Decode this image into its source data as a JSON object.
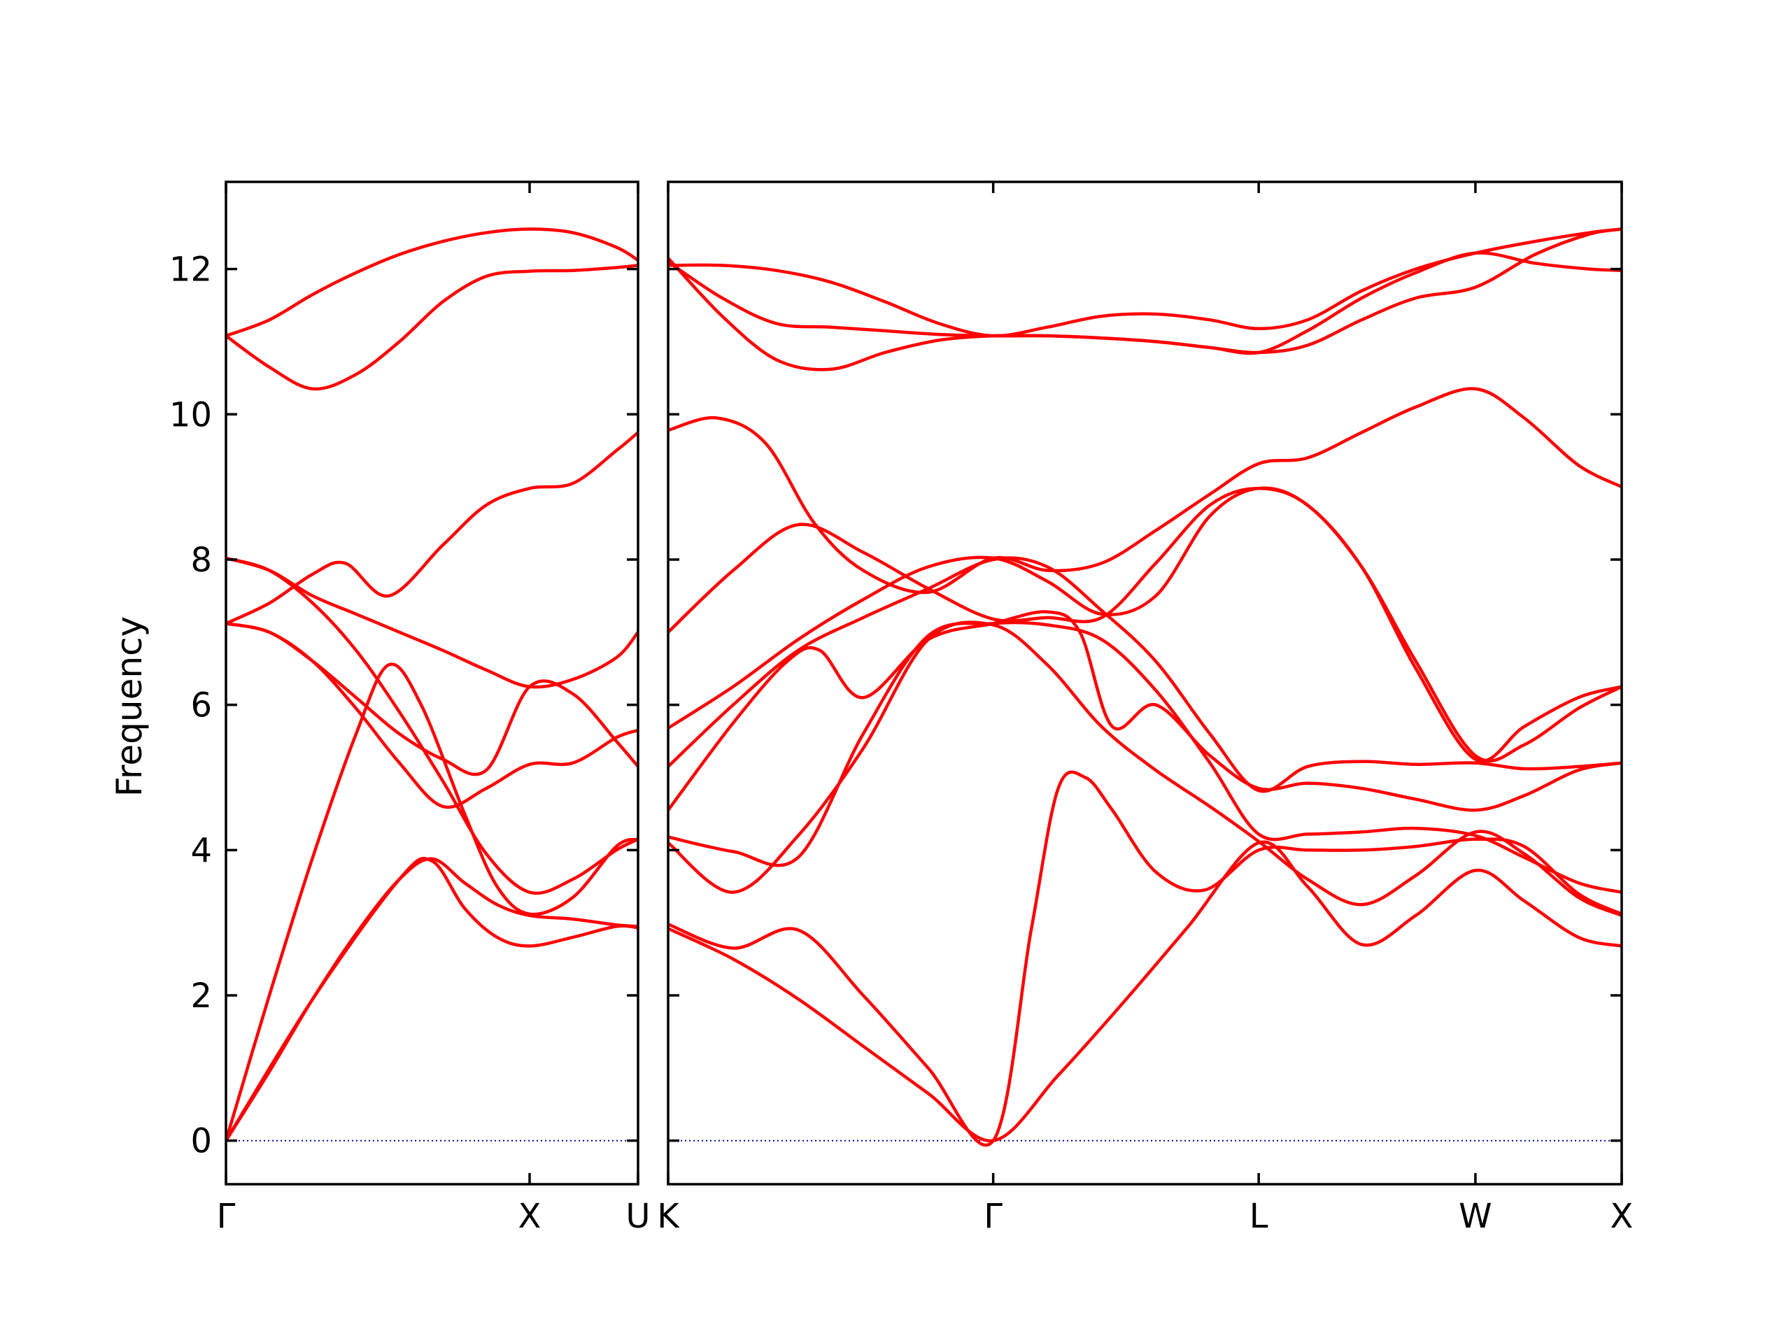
{
  "chart_data": {
    "type": "line",
    "title": "",
    "ylabel": "Frequency",
    "ylim": [
      -0.6,
      13.2
    ],
    "yticks": [
      0,
      2,
      4,
      6,
      8,
      10,
      12
    ],
    "grid": false,
    "legend": false,
    "colors": {
      "band": "#ff0000",
      "zero_line": "#0000aa",
      "frame": "#000000"
    },
    "panels": [
      {
        "name": "left",
        "xlim": [
          0,
          3.8
        ],
        "x_ticks": [
          {
            "x": 0,
            "label": "Γ"
          },
          {
            "x": 2.8,
            "label": "X"
          },
          {
            "x": 3.8,
            "label": "U"
          }
        ],
        "series": [
          {
            "x": [
              0,
              0.4,
              0.8,
              1.2,
              1.6,
              2.0,
              2.4,
              2.8,
              3.2,
              3.6,
              3.8
            ],
            "values": [
              11.08,
              11.3,
              11.65,
              11.95,
              12.2,
              12.38,
              12.5,
              12.55,
              12.5,
              12.3,
              12.12
            ]
          },
          {
            "x": [
              0,
              0.4,
              0.8,
              1.2,
              1.6,
              2.0,
              2.4,
              2.8,
              3.2,
              3.6,
              3.8
            ],
            "values": [
              11.08,
              10.65,
              10.35,
              10.55,
              11.0,
              11.55,
              11.9,
              11.97,
              11.98,
              12.02,
              12.05
            ]
          },
          {
            "x": [
              0,
              0.4,
              0.8,
              1.1,
              1.5,
              2.0,
              2.4,
              2.8,
              3.2,
              3.6,
              3.8
            ],
            "values": [
              7.12,
              7.4,
              7.8,
              7.95,
              7.5,
              8.2,
              8.75,
              8.98,
              9.05,
              9.5,
              9.75
            ]
          },
          {
            "x": [
              0,
              0.4,
              0.8,
              1.2,
              1.6,
              2.0,
              2.4,
              2.8,
              3.2,
              3.6,
              3.8
            ],
            "values": [
              8.02,
              7.85,
              7.5,
              7.25,
              7.0,
              6.75,
              6.48,
              6.25,
              6.35,
              6.65,
              7.0
            ]
          },
          {
            "x": [
              0,
              0.4,
              0.8,
              1.2,
              1.6,
              2.0,
              2.4,
              2.8,
              3.2,
              3.6,
              3.8
            ],
            "values": [
              8.02,
              7.85,
              7.4,
              6.75,
              5.9,
              4.95,
              3.95,
              3.42,
              3.6,
              4.0,
              4.15
            ]
          },
          {
            "x": [
              0,
              0.4,
              0.8,
              1.2,
              1.6,
              2.0,
              2.4,
              2.8,
              3.2,
              3.6,
              3.8
            ],
            "values": [
              7.12,
              7.0,
              6.6,
              5.95,
              5.2,
              4.6,
              4.85,
              5.18,
              5.2,
              5.55,
              5.65
            ]
          },
          {
            "x": [
              0,
              0.4,
              0.8,
              1.2,
              1.6,
              2.0,
              2.4,
              2.8,
              3.2,
              3.6,
              3.8
            ],
            "values": [
              7.12,
              7.0,
              6.6,
              6.1,
              5.6,
              5.25,
              5.1,
              6.25,
              6.15,
              5.5,
              5.15
            ]
          },
          {
            "x": [
              0,
              0.4,
              0.8,
              1.2,
              1.5,
              1.8,
              2.2,
              2.5,
              2.8,
              3.2,
              3.6,
              3.8
            ],
            "values": [
              0,
              2.0,
              3.9,
              5.6,
              6.55,
              6.0,
              4.5,
              3.5,
              3.12,
              3.35,
              4.05,
              4.15
            ]
          },
          {
            "x": [
              0,
              0.4,
              0.8,
              1.2,
              1.6,
              1.9,
              2.2,
              2.5,
              2.8,
              3.2,
              3.6,
              3.8
            ],
            "values": [
              0,
              0.95,
              1.95,
              2.85,
              3.6,
              3.88,
              3.55,
              3.25,
              3.1,
              3.05,
              2.97,
              2.95
            ]
          },
          {
            "x": [
              0,
              0.8,
              1.6,
              1.9,
              2.2,
              2.5,
              2.8,
              3.2,
              3.6,
              3.8
            ],
            "values": [
              0,
              1.95,
              3.6,
              3.85,
              3.2,
              2.8,
              2.68,
              2.8,
              2.95,
              2.93
            ]
          }
        ]
      },
      {
        "name": "right",
        "xlim": [
          0,
          8.8
        ],
        "x_ticks": [
          {
            "x": 0,
            "label": "K"
          },
          {
            "x": 3.0,
            "label": "Γ"
          },
          {
            "x": 5.45,
            "label": "L"
          },
          {
            "x": 7.45,
            "label": "W"
          },
          {
            "x": 8.8,
            "label": "X"
          }
        ],
        "series": [
          {
            "x": [
              0,
              0.5,
              1.0,
              1.5,
              2.0,
              2.5,
              3.0,
              3.5,
              4.0,
              4.5,
              5.0,
              5.45,
              5.9,
              6.4,
              6.9,
              7.45,
              8.0,
              8.5,
              8.8
            ],
            "values": [
              12.05,
              12.05,
              11.98,
              11.82,
              11.55,
              11.25,
              11.08,
              11.2,
              11.35,
              11.38,
              11.3,
              11.18,
              11.3,
              11.7,
              12.0,
              12.22,
              12.38,
              12.5,
              12.55
            ]
          },
          {
            "x": [
              0,
              0.5,
              1.0,
              1.5,
              2.0,
              2.5,
              3.0,
              3.5,
              4.0,
              4.5,
              5.0,
              5.45,
              5.9,
              6.4,
              6.9,
              7.45,
              8.0,
              8.5,
              8.8
            ],
            "values": [
              12.1,
              11.6,
              11.25,
              11.2,
              11.15,
              11.1,
              11.08,
              11.08,
              11.05,
              11.0,
              10.92,
              10.85,
              11.15,
              11.6,
              11.95,
              12.22,
              12.08,
              12.0,
              11.98
            ]
          },
          {
            "x": [
              0,
              0.5,
              1.0,
              1.5,
              2.0,
              2.5,
              3.0,
              3.5,
              4.0,
              4.5,
              5.0,
              5.45,
              5.9,
              6.4,
              6.9,
              7.45,
              8.0,
              8.5,
              8.8
            ],
            "values": [
              12.15,
              11.35,
              10.75,
              10.62,
              10.85,
              11.02,
              11.08,
              11.08,
              11.05,
              11.0,
              10.92,
              10.85,
              10.95,
              11.3,
              11.6,
              11.75,
              12.2,
              12.48,
              12.55
            ]
          },
          {
            "x": [
              0,
              0.45,
              0.9,
              1.35,
              1.8,
              2.4,
              3.0,
              3.5,
              4.0,
              4.5,
              5.0,
              5.45,
              5.9,
              6.4,
              6.9,
              7.45,
              7.9,
              8.4,
              8.8
            ],
            "values": [
              9.78,
              9.95,
              9.6,
              8.5,
              7.85,
              7.55,
              8.02,
              7.85,
              7.95,
              8.4,
              8.9,
              9.32,
              9.4,
              9.75,
              10.1,
              10.35,
              9.95,
              9.3,
              9.0
            ]
          },
          {
            "x": [
              0,
              0.6,
              1.2,
              1.8,
              2.4,
              3.0,
              3.5,
              4.0,
              4.5,
              5.0,
              5.45,
              5.9,
              6.4,
              6.9,
              7.45,
              7.9,
              8.4,
              8.8
            ],
            "values": [
              7.0,
              7.85,
              8.48,
              8.1,
              7.6,
              7.18,
              7.2,
              7.2,
              7.95,
              8.75,
              8.98,
              8.75,
              7.9,
              6.6,
              5.3,
              5.45,
              5.95,
              6.25
            ]
          },
          {
            "x": [
              0,
              0.6,
              1.2,
              1.8,
              2.4,
              3.0,
              3.5,
              4.0,
              4.5,
              5.0,
              5.45,
              5.9,
              6.4,
              6.9,
              7.45,
              7.9,
              8.4,
              8.8
            ],
            "values": [
              5.68,
              6.25,
              6.9,
              7.45,
              7.9,
              8.02,
              7.7,
              7.25,
              7.5,
              8.6,
              8.98,
              8.75,
              7.9,
              6.5,
              5.25,
              5.7,
              6.1,
              6.25
            ]
          },
          {
            "x": [
              0,
              0.6,
              1.2,
              1.8,
              2.4,
              3.0,
              3.5,
              4.0,
              4.5,
              5.0,
              5.45,
              5.9,
              6.4,
              6.9,
              7.45,
              7.9,
              8.4,
              8.8
            ],
            "values": [
              5.15,
              6.0,
              6.75,
              7.2,
              7.6,
              8.0,
              7.9,
              7.3,
              6.6,
              5.6,
              4.82,
              5.15,
              5.22,
              5.18,
              5.2,
              5.12,
              5.15,
              5.2
            ]
          },
          {
            "x": [
              0,
              0.6,
              1.1,
              1.4,
              1.8,
              2.4,
              3.0,
              3.5,
              3.8,
              4.1,
              4.5,
              5.0,
              5.45,
              5.9,
              6.4,
              6.9,
              7.45,
              7.9,
              8.4,
              8.8
            ],
            "values": [
              4.55,
              5.75,
              6.6,
              6.75,
              6.1,
              6.9,
              7.12,
              7.28,
              7.0,
              5.7,
              6.0,
              5.3,
              4.85,
              4.92,
              4.85,
              4.7,
              4.55,
              4.75,
              5.1,
              5.2
            ]
          },
          {
            "x": [
              0,
              0.6,
              1.2,
              1.8,
              2.4,
              3.0,
              3.5,
              4.0,
              4.5,
              5.0,
              5.45,
              5.9,
              6.4,
              6.9,
              7.45,
              7.9,
              8.4,
              8.8
            ],
            "values": [
              4.18,
              3.98,
              3.9,
              5.6,
              6.95,
              7.12,
              7.1,
              6.9,
              6.2,
              5.2,
              4.22,
              4.22,
              4.25,
              4.3,
              4.2,
              3.9,
              3.55,
              3.42
            ]
          },
          {
            "x": [
              0,
              0.6,
              1.2,
              1.8,
              2.4,
              3.0,
              3.5,
              4.0,
              4.5,
              5.0,
              5.45,
              5.9,
              6.4,
              6.9,
              7.45,
              7.9,
              8.4,
              8.8
            ],
            "values": [
              4.1,
              3.42,
              4.2,
              5.4,
              6.9,
              7.1,
              6.55,
              5.7,
              5.1,
              4.6,
              4.12,
              3.6,
              3.25,
              3.65,
              4.25,
              3.95,
              3.35,
              3.1
            ]
          },
          {
            "x": [
              0,
              0.6,
              1.2,
              1.8,
              2.4,
              3.0,
              3.35,
              3.6,
              3.85,
              4.1,
              4.5,
              4.95,
              5.45,
              5.9,
              6.4,
              6.9,
              7.45,
              7.9,
              8.4,
              8.8
            ],
            "values": [
              2.98,
              2.65,
              2.9,
              2.0,
              1.0,
              0,
              2.9,
              4.85,
              5.0,
              4.55,
              3.7,
              3.45,
              4.0,
              4.0,
              4.0,
              4.05,
              4.15,
              4.05,
              3.4,
              3.12
            ]
          },
          {
            "x": [
              0,
              0.6,
              1.2,
              1.8,
              2.4,
              3.0,
              3.6,
              4.2,
              4.8,
              5.45,
              5.9,
              6.4,
              6.9,
              7.45,
              7.9,
              8.4,
              8.8
            ],
            "values": [
              2.92,
              2.5,
              1.95,
              1.3,
              0.65,
              0,
              0.9,
              1.9,
              2.95,
              4.1,
              3.5,
              2.7,
              3.1,
              3.72,
              3.3,
              2.8,
              2.68
            ]
          }
        ]
      }
    ]
  }
}
